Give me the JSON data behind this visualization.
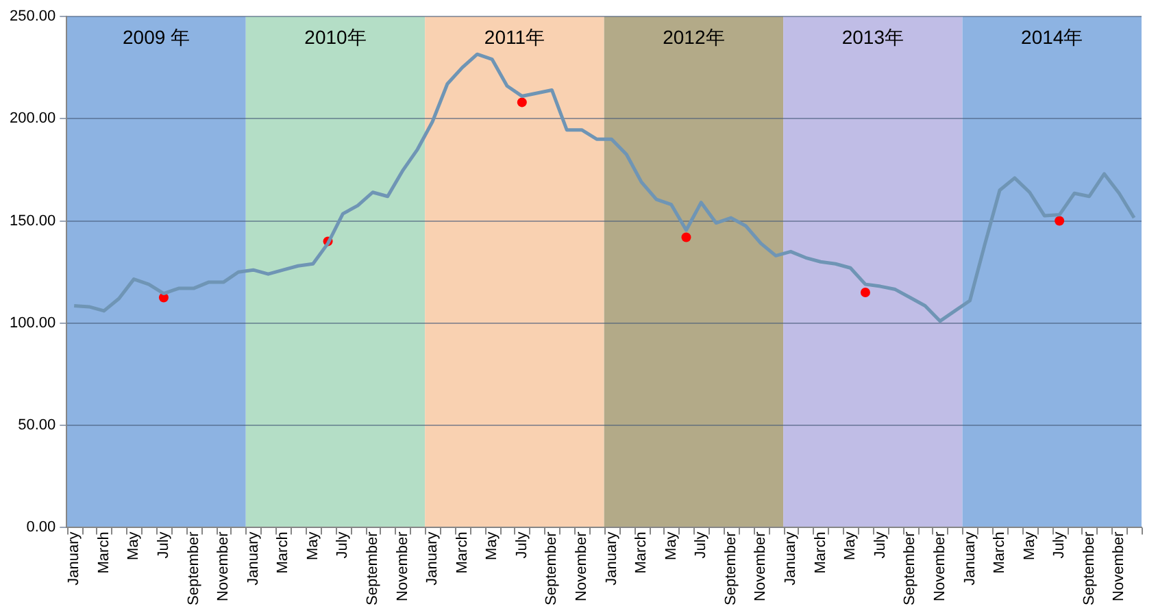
{
  "chart_data": {
    "type": "line",
    "x": [
      "2009-01-16",
      "2009-02-16",
      "2009-03-16",
      "2009-04-16",
      "2009-05-16",
      "2009-06-16",
      "2009-07-16",
      "2009-08-16",
      "2009-09-16",
      "2009-10-16",
      "2009-11-16",
      "2009-12-16",
      "2010-01-16",
      "2010-02-16",
      "2010-03-16",
      "2010-04-16",
      "2010-05-16",
      "2010-06-16",
      "2010-07-16",
      "2010-08-16",
      "2010-09-16",
      "2010-10-16",
      "2010-11-16",
      "2010-12-16",
      "2011-01-16",
      "2011-02-16",
      "2011-03-16",
      "2011-04-16",
      "2011-05-16",
      "2011-06-16",
      "2011-07-16",
      "2011-08-16",
      "2011-09-16",
      "2011-10-16",
      "2011-11-16",
      "2011-12-16",
      "2012-01-16",
      "2012-02-16",
      "2012-03-16",
      "2012-04-16",
      "2012-05-16",
      "2012-06-16",
      "2012-07-16",
      "2012-08-16",
      "2012-09-16",
      "2012-10-16",
      "2012-11-16",
      "2012-12-16",
      "2013-01-16",
      "2013-02-16",
      "2013-03-16",
      "2013-04-16",
      "2013-05-16",
      "2013-06-16",
      "2013-07-16",
      "2013-08-16",
      "2013-09-16",
      "2013-10-16",
      "2013-11-16",
      "2013-12-16",
      "2014-01-16",
      "2014-02-16",
      "2014-03-16",
      "2014-04-16",
      "2014-05-16",
      "2014-06-16",
      "2014-07-16",
      "2014-08-16",
      "2014-09-16",
      "2014-10-16",
      "2014-11-16",
      "2014-12-16"
    ],
    "series": [
      {
        "color": "#6f95b5",
        "marker": "none",
        "line_style": "solid",
        "values": [
          108.5,
          108,
          106,
          112,
          121.5,
          119,
          114.5,
          117,
          117,
          120,
          120,
          125,
          126,
          124,
          126,
          128,
          129,
          139,
          153.5,
          157.5,
          164,
          162,
          174.5,
          185,
          198.5,
          217,
          225,
          231.5,
          229,
          216,
          211,
          212.5,
          214,
          194.5,
          194.5,
          190,
          190,
          182.5,
          169,
          160.5,
          158,
          145.5,
          159,
          149,
          151.5,
          147.5,
          139,
          133,
          135,
          132,
          130,
          129,
          127,
          119,
          118,
          116.5,
          112.5,
          108.5,
          101,
          106,
          111,
          138.5,
          165,
          171,
          164,
          152.5,
          153,
          163.5,
          162,
          173,
          163.5,
          151.5
        ]
      },
      {
        "type": "scatter",
        "color": "#ff0000",
        "marker": "circle",
        "x": [
          "2009-07-16",
          "2010-06-16",
          "2011-07-16",
          "2012-06-16",
          "2013-06-16",
          "2014-07-16"
        ],
        "values": [
          112.5,
          140,
          208,
          142,
          115,
          150
        ]
      }
    ],
    "xlim": [
      "2009-01",
      "2015-01"
    ],
    "xticks": [
      {
        "value": "2009-01-16",
        "label": "January"
      },
      {
        "value": "2009-03-16",
        "label": "March"
      },
      {
        "value": "2009-05-16",
        "label": "May"
      },
      {
        "value": "2009-07-16",
        "label": "July"
      },
      {
        "value": "2009-09-16",
        "label": "September"
      },
      {
        "value": "2009-11-16",
        "label": "November"
      },
      {
        "value": "2010-01-16",
        "label": "January"
      },
      {
        "value": "2010-03-16",
        "label": "March"
      },
      {
        "value": "2010-05-16",
        "label": "May"
      },
      {
        "value": "2010-07-16",
        "label": "July"
      },
      {
        "value": "2010-09-16",
        "label": "September"
      },
      {
        "value": "2010-11-16",
        "label": "November"
      },
      {
        "value": "2011-01-16",
        "label": "January"
      },
      {
        "value": "2011-03-16",
        "label": "March"
      },
      {
        "value": "2011-05-16",
        "label": "May"
      },
      {
        "value": "2011-07-16",
        "label": "July"
      },
      {
        "value": "2011-09-16",
        "label": "September"
      },
      {
        "value": "2011-11-16",
        "label": "November"
      },
      {
        "value": "2012-01-16",
        "label": "January"
      },
      {
        "value": "2012-03-16",
        "label": "March"
      },
      {
        "value": "2012-05-16",
        "label": "May"
      },
      {
        "value": "2012-07-16",
        "label": "July"
      },
      {
        "value": "2012-09-16",
        "label": "September"
      },
      {
        "value": "2012-11-16",
        "label": "November"
      },
      {
        "value": "2013-01-16",
        "label": "January"
      },
      {
        "value": "2013-03-16",
        "label": "March"
      },
      {
        "value": "2013-05-16",
        "label": "May"
      },
      {
        "value": "2013-07-16",
        "label": "July"
      },
      {
        "value": "2013-09-16",
        "label": "September"
      },
      {
        "value": "2013-11-16",
        "label": "November"
      },
      {
        "value": "2014-01-16",
        "label": "January"
      },
      {
        "value": "2014-03-16",
        "label": "March"
      },
      {
        "value": "2014-05-16",
        "label": "May"
      },
      {
        "value": "2014-07-16",
        "label": "July"
      },
      {
        "value": "2014-09-16",
        "label": "September"
      },
      {
        "value": "2014-11-16",
        "label": "November"
      }
    ],
    "ylim": [
      0,
      250
    ],
    "yticks": [
      {
        "value": 0,
        "label": "0.00"
      },
      {
        "value": 50,
        "label": "50.00"
      },
      {
        "value": 100,
        "label": "100.00"
      },
      {
        "value": 150,
        "label": "150.00"
      },
      {
        "value": 200,
        "label": "200.00"
      },
      {
        "value": 250,
        "label": "250.00"
      }
    ],
    "grid": "y",
    "legend": false,
    "bands": [
      {
        "axis": "x",
        "from": "2009-01",
        "to": "2010-01",
        "label": "2009 年",
        "color": "#8db3e2"
      },
      {
        "axis": "x",
        "from": "2010-01",
        "to": "2011-01",
        "label": "2010年",
        "color": "#b4dec6"
      },
      {
        "axis": "x",
        "from": "2011-01",
        "to": "2012-01",
        "label": "2011年",
        "color": "#f9d1b1"
      },
      {
        "axis": "x",
        "from": "2012-01",
        "to": "2013-01",
        "label": "2012年",
        "color": "#b3aa88"
      },
      {
        "axis": "x",
        "from": "2013-01",
        "to": "2014-01",
        "label": "2013年",
        "color": "#c0bde6"
      },
      {
        "axis": "x",
        "from": "2014-01",
        "to": "2015-01",
        "label": "2014年",
        "color": "#8db3e2"
      }
    ]
  }
}
